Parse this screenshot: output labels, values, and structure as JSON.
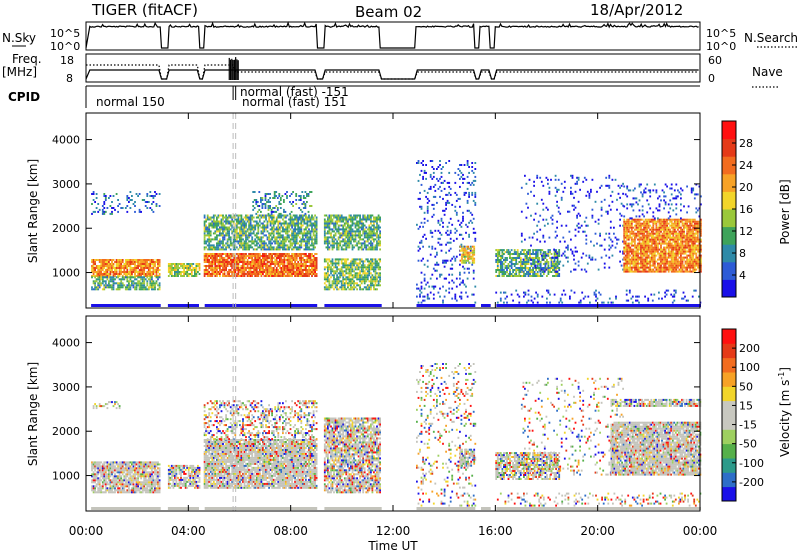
{
  "header": {
    "title": "TIGER (fitACF)",
    "beam": "Beam 02",
    "date": "18/Apr/2012"
  },
  "top_panels": {
    "nsky_label": "N.Sky",
    "nsky_ticks": [
      "10^5",
      "10^0"
    ],
    "nsearch_label": "N.Search",
    "nsearch_ticks": [
      "10^5",
      "10^0"
    ],
    "freq_label": "Freq.",
    "freq_unit": "[MHz]",
    "freq_ticks": [
      "18",
      "8"
    ],
    "nave_label": "Nave",
    "nave_ticks": [
      "60",
      "0"
    ],
    "cpid_label": "CPID",
    "cpid_entries": [
      {
        "text": "normal 150",
        "start_h": 0.0
      },
      {
        "text": "normal (fast) -151",
        "start_h": 5.75
      },
      {
        "text": "normal (fast) 151",
        "start_h": 5.85
      }
    ],
    "data_gaps_h": [
      [
        2.9,
        3.2
      ],
      [
        4.4,
        4.6
      ],
      [
        9.0,
        9.3
      ],
      [
        11.5,
        12.9
      ],
      [
        15.2,
        15.4
      ],
      [
        15.8,
        16.0
      ]
    ]
  },
  "chart_data": [
    {
      "type": "heatmap",
      "name": "power",
      "ylabel": "Slant Range [km]",
      "xlabel": "Time UT",
      "xticks": [
        "00:00",
        "04:00",
        "08:00",
        "12:00",
        "16:00",
        "20:00",
        "00:00"
      ],
      "xlim_hours": [
        0,
        24
      ],
      "ylim_km": [
        200,
        4600
      ],
      "yticks": [
        1000,
        2000,
        3000,
        4000
      ],
      "colorbar": {
        "label": "Power [dB]",
        "ticks": [
          4,
          8,
          12,
          16,
          20,
          24,
          28
        ],
        "range": [
          0,
          32
        ],
        "colors": [
          "#1a10e8",
          "#2d5bd6",
          "#2e8aa8",
          "#3ea35a",
          "#9ac83a",
          "#f2d52a",
          "#f7a226",
          "#f26c1f",
          "#e53a18",
          "#ff1010"
        ]
      },
      "regions": [
        {
          "t0": 0.2,
          "t1": 2.9,
          "r0": 900,
          "r1": 1300,
          "level": 0.7
        },
        {
          "t0": 0.2,
          "t1": 2.9,
          "r0": 600,
          "r1": 900,
          "level": 0.35
        },
        {
          "t0": 0.2,
          "t1": 2.9,
          "r0": 2300,
          "r1": 2800,
          "level": 0.15
        },
        {
          "t0": 3.2,
          "t1": 4.4,
          "r0": 900,
          "r1": 1200,
          "level": 0.45
        },
        {
          "t0": 4.6,
          "t1": 9.0,
          "r0": 900,
          "r1": 1400,
          "level": 0.75
        },
        {
          "t0": 4.6,
          "t1": 9.0,
          "r0": 1500,
          "r1": 2300,
          "level": 0.35
        },
        {
          "t0": 6.5,
          "t1": 8.8,
          "r0": 2300,
          "r1": 2800,
          "level": 0.25
        },
        {
          "t0": 9.3,
          "t1": 11.5,
          "r0": 600,
          "r1": 1300,
          "level": 0.4
        },
        {
          "t0": 9.3,
          "t1": 11.5,
          "r0": 1500,
          "r1": 2300,
          "level": 0.35
        },
        {
          "t0": 12.9,
          "t1": 15.2,
          "r0": 300,
          "r1": 3500,
          "level": 0.12
        },
        {
          "t0": 14.6,
          "t1": 15.2,
          "r0": 1200,
          "r1": 1600,
          "level": 0.55
        },
        {
          "t0": 16.0,
          "t1": 18.5,
          "r0": 900,
          "r1": 1500,
          "level": 0.35
        },
        {
          "t0": 16.0,
          "t1": 24.0,
          "r0": 300,
          "r1": 600,
          "level": 0.12
        },
        {
          "t0": 17.0,
          "t1": 21.0,
          "r0": 1000,
          "r1": 3200,
          "level": 0.08
        },
        {
          "t0": 21.0,
          "t1": 24.0,
          "r0": 1000,
          "r1": 2200,
          "level": 0.7
        },
        {
          "t0": 21.0,
          "t1": 24.0,
          "r0": 2200,
          "r1": 3000,
          "level": 0.12
        }
      ]
    },
    {
      "type": "heatmap",
      "name": "velocity",
      "ylabel": "Slant Range [km]",
      "xlabel": "Time UT",
      "xticks": [
        "00:00",
        "04:00",
        "08:00",
        "12:00",
        "16:00",
        "20:00",
        "00:00"
      ],
      "xlim_hours": [
        0,
        24
      ],
      "ylim_km": [
        200,
        4600
      ],
      "yticks": [
        1000,
        2000,
        3000,
        4000
      ],
      "colorbar": {
        "label": "Velocity [m s",
        "label_sup": "-1",
        "label_end": "]",
        "ticks": [
          200,
          100,
          50,
          15,
          -15,
          -50,
          -100,
          -200
        ],
        "colors": [
          "#1a10e8",
          "#2d6ec8",
          "#2c9a8a",
          "#56b04a",
          "#9ed060",
          "#c8c8c0",
          "#c8c8c0",
          "#f2d52a",
          "#f7a226",
          "#f26c1f",
          "#e53a18",
          "#ff1010"
        ]
      },
      "regions": [
        {
          "t0": 0.2,
          "t1": 2.9,
          "r0": 600,
          "r1": 1300,
          "level": 0.7
        },
        {
          "t0": 0.2,
          "t1": 1.3,
          "r0": 2500,
          "r1": 2650,
          "level": 0.3
        },
        {
          "t0": 3.2,
          "t1": 4.4,
          "r0": 700,
          "r1": 1200,
          "level": 0.5
        },
        {
          "t0": 4.6,
          "t1": 9.0,
          "r0": 700,
          "r1": 1800,
          "level": 0.75
        },
        {
          "t0": 4.6,
          "t1": 9.0,
          "r0": 1800,
          "r1": 2700,
          "level": 0.3
        },
        {
          "t0": 9.3,
          "t1": 11.5,
          "r0": 600,
          "r1": 2300,
          "level": 0.55
        },
        {
          "t0": 12.9,
          "t1": 15.2,
          "r0": 300,
          "r1": 3500,
          "level": 0.12
        },
        {
          "t0": 14.6,
          "t1": 15.2,
          "r0": 1200,
          "r1": 1600,
          "level": 0.5
        },
        {
          "t0": 16.0,
          "t1": 18.5,
          "r0": 900,
          "r1": 1500,
          "level": 0.45
        },
        {
          "t0": 16.0,
          "t1": 24.0,
          "r0": 300,
          "r1": 600,
          "level": 0.15
        },
        {
          "t0": 17.0,
          "t1": 21.0,
          "r0": 1000,
          "r1": 3200,
          "level": 0.08
        },
        {
          "t0": 20.5,
          "t1": 24.0,
          "r0": 1000,
          "r1": 2200,
          "level": 0.75
        },
        {
          "t0": 20.5,
          "t1": 24.0,
          "r0": 2550,
          "r1": 2700,
          "level": 0.45
        }
      ]
    }
  ]
}
